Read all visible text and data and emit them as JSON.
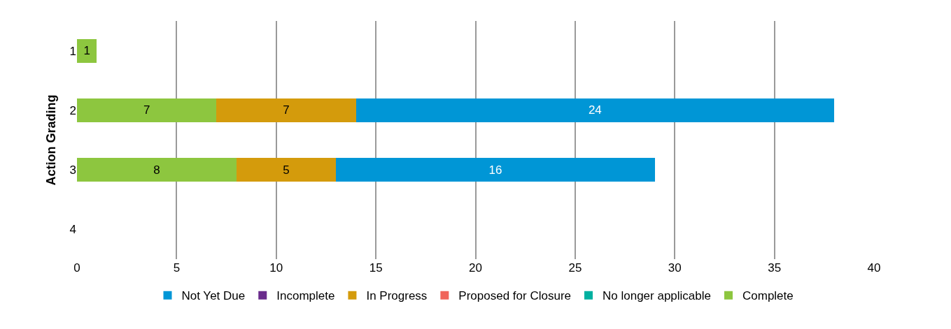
{
  "chart_data": {
    "type": "bar",
    "orientation": "horizontal",
    "stacked": true,
    "ylabel": "Action Grading",
    "categories": [
      "1",
      "2",
      "3",
      "4"
    ],
    "series": [
      {
        "name": "Complete",
        "color": "#8dc63f",
        "values": [
          1,
          7,
          8,
          null
        ]
      },
      {
        "name": "No longer applicable",
        "color": "#00b0a0",
        "values": [
          null,
          null,
          null,
          null
        ]
      },
      {
        "name": "Proposed for Closure",
        "color": "#f0645a",
        "values": [
          null,
          null,
          null,
          null
        ]
      },
      {
        "name": "In Progress",
        "color": "#d49b0c",
        "values": [
          null,
          7,
          5,
          null
        ]
      },
      {
        "name": "Incomplete",
        "color": "#6a2c8c",
        "values": [
          null,
          null,
          null,
          null
        ]
      },
      {
        "name": "Not Yet Due",
        "color": "#0096d6",
        "values": [
          null,
          24,
          16,
          null
        ]
      }
    ],
    "xlim": [
      0,
      40
    ],
    "xticks": [
      0,
      5,
      10,
      15,
      20,
      25,
      30,
      35,
      40
    ],
    "grid": "x",
    "legend": "bottom",
    "data_labels": true
  }
}
